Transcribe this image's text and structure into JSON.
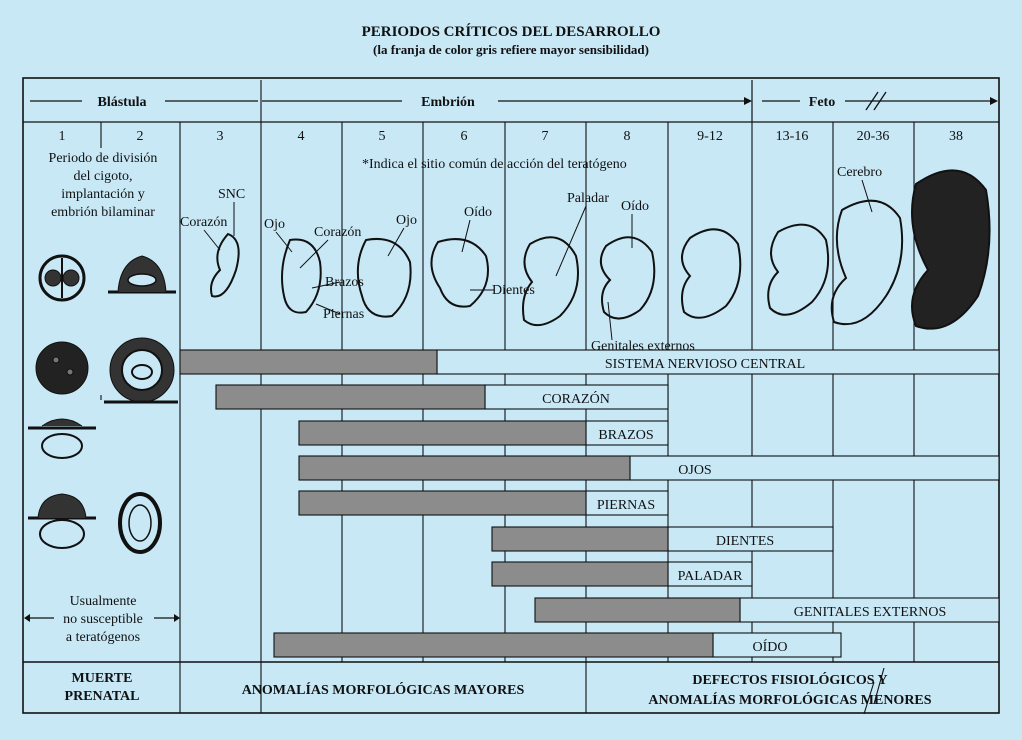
{
  "title": "PERIODOS CRÍTICOS DEL DESARROLLO",
  "subtitle": "(la franja de color gris refiere mayor sensibilidad)",
  "stages": {
    "blastula": "Blástula",
    "embrion": "Embrión",
    "feto": "Feto"
  },
  "weeks": [
    "1",
    "2",
    "3",
    "4",
    "5",
    "6",
    "7",
    "8",
    "9-12",
    "13-16",
    "20-36",
    "38"
  ],
  "notes": {
    "division_line1": "Periodo de división",
    "division_line2": "del cigoto,",
    "division_line3": "implantación y",
    "division_line4": "embrión bilaminar",
    "teratogen_site": "*Indica el sitio común de acción del teratógeno",
    "not_susceptible_line1": "Usualmente",
    "not_susceptible_line2": "no susceptible",
    "not_susceptible_line3": "a teratógenos"
  },
  "embryo_labels": {
    "snc": "SNC",
    "corazon_wk3": "Corazón",
    "ojo_wk4": "Ojo",
    "corazon_wk5": "Corazón",
    "ojo_wk5": "Ojo",
    "brazos": "Brazos",
    "piernas": "Piernas",
    "oido_wk6": "Oído",
    "dientes": "Dientes",
    "paladar": "Paladar",
    "oido_wk8": "Oído",
    "genitales": "Genitales externos",
    "cerebro": "Cerebro"
  },
  "organ_bars": [
    {
      "label": "SISTEMA NERVIOSO CENTRAL",
      "high_sensitivity_weeks": "3–6",
      "low_sensitivity_weeks": "6–38"
    },
    {
      "label": "CORAZÓN",
      "high_sensitivity_weeks": "3–6",
      "low_sensitivity_weeks": "6–8"
    },
    {
      "label": "BRAZOS",
      "high_sensitivity_weeks": "4–8",
      "low_sensitivity_weeks": "8–9"
    },
    {
      "label": "OJOS",
      "high_sensitivity_weeks": "4–8",
      "low_sensitivity_weeks": "8–38"
    },
    {
      "label": "PIERNAS",
      "high_sensitivity_weeks": "4–8",
      "low_sensitivity_weeks": "8–9"
    },
    {
      "label": "DIENTES",
      "high_sensitivity_weeks": "7–9",
      "low_sensitivity_weeks": "9–20"
    },
    {
      "label": "PALADAR",
      "high_sensitivity_weeks": "7–9",
      "low_sensitivity_weeks": "9–13"
    },
    {
      "label": "GENITALES EXTERNOS",
      "high_sensitivity_weeks": "7–13",
      "low_sensitivity_weeks": "13–38"
    },
    {
      "label": "OÍDO",
      "high_sensitivity_weeks": "4–13",
      "low_sensitivity_weeks": "13–20"
    }
  ],
  "footer": {
    "prenatal_line1": "MUERTE",
    "prenatal_line2": "PRENATAL",
    "major": "ANOMALÍAS MORFOLÓGICAS MAYORES",
    "minor_line1": "DEFECTOS FISIOLÓGICOS Y",
    "minor_line2": "ANOMALÍAS MORFOLÓGICAS MENORES"
  },
  "colors": {
    "background": "#c8e8f6",
    "high_sensitivity": "#8c8c8c",
    "low_sensitivity": "#c8e8f6",
    "line": "#111111"
  }
}
